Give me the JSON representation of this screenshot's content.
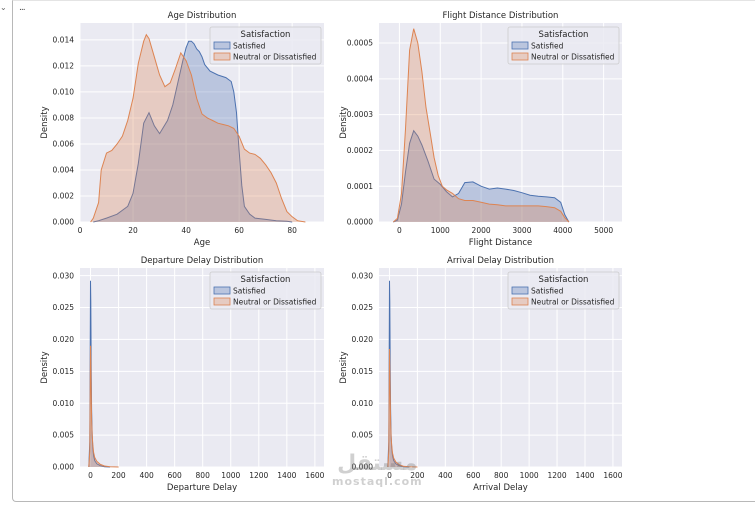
{
  "cell": {
    "collapse_icon": "chevron-down-icon",
    "ellipsis": "..."
  },
  "watermark": {
    "arabic": "مستقل",
    "latin": "mostaql.com"
  },
  "colors": {
    "satisfied": "#4c72b0",
    "neutral": "#dd8452",
    "panel_bg": "#eaeaf2",
    "grid": "#ffffff"
  },
  "chart_data": [
    {
      "id": "age",
      "type": "area",
      "title": "Age Distribution",
      "xlabel": "Age",
      "ylabel": "Density",
      "xlim": [
        0,
        92
      ],
      "ylim": [
        0,
        0.0153
      ],
      "xticks": [
        0,
        20,
        40,
        60,
        80
      ],
      "xtick_labels": [
        "0",
        "20",
        "40",
        "60",
        "80"
      ],
      "yticks": [
        0,
        0.002,
        0.004,
        0.006,
        0.008,
        0.01,
        0.012,
        0.014
      ],
      "ytick_labels": [
        "0.000",
        "0.002",
        "0.004",
        "0.006",
        "0.008",
        "0.010",
        "0.012",
        "0.014"
      ],
      "legend": {
        "title": "Satisfaction",
        "placement": "top-right",
        "entries": [
          "Satisfied",
          "Neutral or Dissatisfied"
        ]
      },
      "series": [
        {
          "name": "Satisfied",
          "x": [
            5,
            7,
            10,
            14,
            18,
            20,
            22,
            24,
            26,
            28,
            30,
            33,
            35,
            37,
            39,
            40,
            41,
            42,
            43,
            44,
            45,
            46,
            47,
            49,
            52,
            55,
            57,
            58,
            59,
            60,
            61,
            62,
            64,
            66,
            70,
            74,
            78,
            80
          ],
          "y": [
            0,
            0.0001,
            0.0003,
            0.0006,
            0.0012,
            0.0022,
            0.0045,
            0.0076,
            0.0084,
            0.0074,
            0.0068,
            0.0078,
            0.009,
            0.0108,
            0.0126,
            0.0134,
            0.0139,
            0.0139,
            0.0137,
            0.0133,
            0.0131,
            0.0127,
            0.0121,
            0.0116,
            0.0113,
            0.0111,
            0.0108,
            0.01,
            0.0084,
            0.0055,
            0.0028,
            0.0012,
            0.0006,
            0.0003,
            0.0002,
            0.0001,
            5e-05,
            0
          ]
        },
        {
          "name": "Neutral or Dissatisfied",
          "x": [
            4,
            5,
            7,
            8,
            10,
            12,
            14,
            16,
            18,
            20,
            22,
            24,
            25,
            26,
            28,
            30,
            32,
            34,
            36,
            38,
            40,
            42,
            44,
            46,
            48,
            50,
            52,
            54,
            56,
            58,
            60,
            62,
            64,
            66,
            68,
            70,
            72,
            74,
            76,
            78,
            80,
            82,
            85
          ],
          "y": [
            0,
            0.0003,
            0.0015,
            0.004,
            0.0053,
            0.0055,
            0.006,
            0.0066,
            0.0078,
            0.0095,
            0.0122,
            0.0139,
            0.0144,
            0.0141,
            0.0127,
            0.0113,
            0.0104,
            0.0107,
            0.0118,
            0.013,
            0.0124,
            0.0113,
            0.0095,
            0.0083,
            0.008,
            0.0078,
            0.0076,
            0.0075,
            0.0074,
            0.0072,
            0.0066,
            0.0056,
            0.0053,
            0.0052,
            0.0049,
            0.0044,
            0.0038,
            0.003,
            0.0018,
            0.0008,
            0.0004,
            0.0001,
            0
          ]
        }
      ]
    },
    {
      "id": "flight",
      "type": "area",
      "title": "Flight Distance Distribution",
      "xlabel": "Flight Distance",
      "ylabel": "Density",
      "xlim": [
        -500,
        5450
      ],
      "ylim": [
        0,
        0.000556
      ],
      "xticks": [
        0,
        1000,
        2000,
        3000,
        4000,
        5000
      ],
      "xtick_labels": [
        "0",
        "1000",
        "2000",
        "3000",
        "4000",
        "5000"
      ],
      "yticks": [
        0,
        0.0001,
        0.0002,
        0.0003,
        0.0004,
        0.0005
      ],
      "ytick_labels": [
        "0.0000",
        "0.0001",
        "0.0002",
        "0.0003",
        "0.0004",
        "0.0005"
      ],
      "legend": {
        "title": "Satisfaction",
        "placement": "top-right",
        "entries": [
          "Satisfied",
          "Neutral or Dissatisfied"
        ]
      },
      "series": [
        {
          "name": "Satisfied",
          "x": [
            -150,
            -50,
            50,
            150,
            250,
            350,
            450,
            550,
            700,
            850,
            1000,
            1150,
            1300,
            1450,
            1600,
            1800,
            2000,
            2200,
            2400,
            2600,
            2800,
            3000,
            3200,
            3400,
            3600,
            3800,
            3950,
            4050,
            4150
          ],
          "y": [
            0,
            5e-06,
            5e-05,
            0.00014,
            0.00022,
            0.000255,
            0.00024,
            0.000215,
            0.00017,
            0.00012,
            0.000105,
            8.5e-05,
            7e-05,
            8e-05,
            0.00011,
            0.000112,
            0.0001,
            9.2e-05,
            9.5e-05,
            9.2e-05,
            8.8e-05,
            8.2e-05,
            7.5e-05,
            7.2e-05,
            7e-05,
            6.8e-05,
            5.5e-05,
            2e-05,
            0
          ]
        },
        {
          "name": "Neutral or Dissatisfied",
          "x": [
            -150,
            -50,
            50,
            150,
            250,
            350,
            450,
            550,
            650,
            750,
            850,
            950,
            1050,
            1150,
            1300,
            1450,
            1600,
            1800,
            2000,
            2200,
            2400,
            2600,
            2800,
            3000,
            3200,
            3400,
            3600,
            3800,
            3950,
            4050,
            4150
          ],
          "y": [
            0,
            1e-05,
            8e-05,
            0.00026,
            0.00048,
            0.00054,
            0.0005,
            0.00042,
            0.00032,
            0.00025,
            0.00018,
            0.00013,
            0.0001,
            9e-05,
            8e-05,
            6.5e-05,
            6e-05,
            6e-05,
            5.5e-05,
            5e-05,
            4.8e-05,
            4.5e-05,
            4.5e-05,
            4.5e-05,
            4.5e-05,
            4.5e-05,
            4.3e-05,
            4e-05,
            3e-05,
            1.2e-05,
            0
          ]
        }
      ]
    },
    {
      "id": "departure",
      "type": "area",
      "title": "Departure Delay Distribution",
      "xlabel": "Departure Delay",
      "ylabel": "Density",
      "xlim": [
        -75,
        1665
      ],
      "ylim": [
        0,
        0.0312
      ],
      "xticks": [
        0,
        200,
        400,
        600,
        800,
        1000,
        1200,
        1400,
        1600
      ],
      "xtick_labels": [
        "0",
        "200",
        "400",
        "600",
        "800",
        "1000",
        "1200",
        "1400",
        "1600"
      ],
      "yticks": [
        0,
        0.005,
        0.01,
        0.015,
        0.02,
        0.025,
        0.03
      ],
      "ytick_labels": [
        "0.000",
        "0.005",
        "0.010",
        "0.015",
        "0.020",
        "0.025",
        "0.030"
      ],
      "legend": {
        "title": "Satisfaction",
        "placement": "top-right",
        "entries": [
          "Satisfied",
          "Neutral or Dissatisfied"
        ]
      },
      "series": [
        {
          "name": "Satisfied",
          "x": [
            -12,
            -5,
            -2,
            0,
            2,
            5,
            8,
            12,
            16,
            22,
            30,
            45,
            70,
            100,
            140
          ],
          "y": [
            0,
            0.004,
            0.018,
            0.0292,
            0.026,
            0.016,
            0.009,
            0.005,
            0.003,
            0.0018,
            0.001,
            0.0005,
            0.0002,
            5e-05,
            0
          ]
        },
        {
          "name": "Neutral or Dissatisfied",
          "x": [
            -12,
            -5,
            -2,
            0,
            2,
            5,
            8,
            12,
            16,
            22,
            30,
            45,
            70,
            100,
            140,
            200
          ],
          "y": [
            0,
            0.0025,
            0.012,
            0.019,
            0.017,
            0.012,
            0.0075,
            0.005,
            0.0035,
            0.0023,
            0.0015,
            0.0009,
            0.0004,
            0.00015,
            5e-05,
            0
          ]
        }
      ]
    },
    {
      "id": "arrival",
      "type": "area",
      "title": "Arrival Delay Distribution",
      "xlabel": "Arrival Delay",
      "ylabel": "Density",
      "xlim": [
        -75,
        1665
      ],
      "ylim": [
        0,
        0.0312
      ],
      "xticks": [
        0,
        200,
        400,
        600,
        800,
        1000,
        1200,
        1400,
        1600
      ],
      "xtick_labels": [
        "0",
        "200",
        "400",
        "600",
        "800",
        "1000",
        "1200",
        "1400",
        "1600"
      ],
      "yticks": [
        0,
        0.005,
        0.01,
        0.015,
        0.02,
        0.025,
        0.03
      ],
      "ytick_labels": [
        "0.000",
        "0.005",
        "0.010",
        "0.015",
        "0.020",
        "0.025",
        "0.030"
      ],
      "legend": {
        "title": "Satisfaction",
        "placement": "top-right",
        "entries": [
          "Satisfied",
          "Neutral or Dissatisfied"
        ]
      },
      "series": [
        {
          "name": "Satisfied",
          "x": [
            -12,
            -5,
            -2,
            0,
            2,
            5,
            8,
            12,
            16,
            22,
            30,
            45,
            70,
            100,
            140
          ],
          "y": [
            0,
            0.004,
            0.018,
            0.0292,
            0.026,
            0.016,
            0.009,
            0.005,
            0.003,
            0.0018,
            0.001,
            0.0005,
            0.0002,
            5e-05,
            0
          ]
        },
        {
          "name": "Neutral or Dissatisfied",
          "x": [
            -12,
            -5,
            -2,
            0,
            2,
            5,
            8,
            12,
            16,
            22,
            30,
            45,
            70,
            100,
            140,
            200
          ],
          "y": [
            0,
            0.0025,
            0.012,
            0.0185,
            0.016,
            0.0115,
            0.0072,
            0.0048,
            0.0034,
            0.0022,
            0.0014,
            0.0008,
            0.00035,
            0.00012,
            4e-05,
            0
          ]
        }
      ]
    }
  ]
}
